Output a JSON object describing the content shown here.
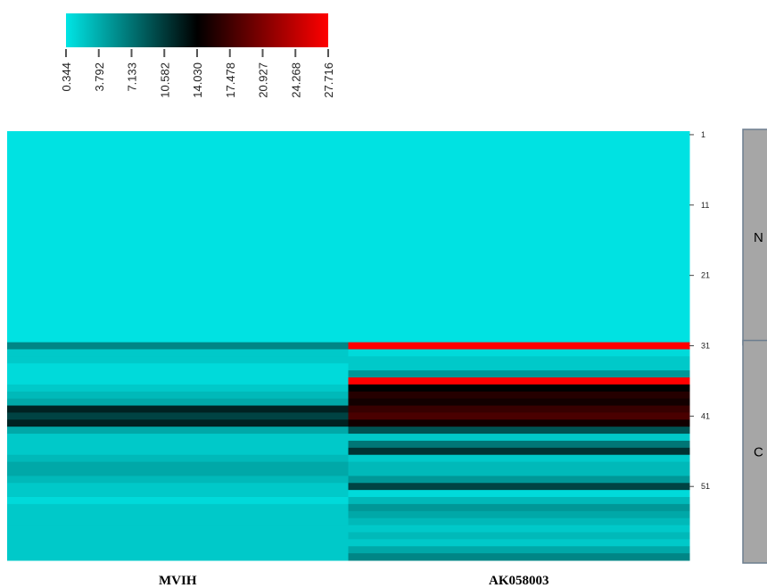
{
  "chart_data": {
    "type": "heatmap",
    "title": "",
    "columns": [
      "MVIH",
      "AK058003"
    ],
    "row_count": 61,
    "row_tick_labels": [
      "1",
      "11",
      "21",
      "31",
      "41",
      "51"
    ],
    "groups": [
      {
        "label": "N",
        "rows": [
          1,
          30
        ]
      },
      {
        "label": "C",
        "rows": [
          31,
          61
        ]
      }
    ],
    "colorbar": {
      "min": 0.344,
      "max": 27.716,
      "tick_labels": [
        "0.344",
        "3.792",
        "7.133",
        "10.582",
        "14.030",
        "17.478",
        "20.927",
        "24.268",
        "27.716"
      ],
      "colors": [
        "#00e5e5",
        "#000000",
        "#ff0000"
      ],
      "position": "top-left"
    },
    "values": {
      "MVIH": [
        0.5,
        0.5,
        0.5,
        0.5,
        0.5,
        0.5,
        0.5,
        0.5,
        0.5,
        0.5,
        0.5,
        0.5,
        0.5,
        0.5,
        0.5,
        0.5,
        0.5,
        0.5,
        0.5,
        0.5,
        0.5,
        0.5,
        0.5,
        0.5,
        0.5,
        0.5,
        0.5,
        0.5,
        0.5,
        0.5,
        6,
        2,
        2,
        1,
        1,
        1,
        2,
        3,
        4,
        12,
        10,
        12,
        4,
        2,
        2,
        2,
        3,
        4,
        4,
        3,
        2,
        2,
        1,
        2,
        2,
        2,
        2,
        2,
        2,
        2,
        2
      ],
      "AK058003": [
        0.5,
        0.5,
        0.5,
        0.5,
        0.5,
        0.5,
        0.5,
        0.5,
        0.5,
        0.5,
        0.5,
        0.5,
        0.5,
        0.5,
        0.5,
        0.5,
        0.5,
        0.5,
        0.5,
        0.5,
        0.5,
        0.5,
        0.5,
        0.5,
        0.5,
        0.5,
        0.5,
        0.5,
        0.5,
        0.5,
        27.7,
        1,
        2,
        2,
        5,
        27.7,
        14,
        16,
        15,
        17,
        18,
        15,
        9,
        2,
        7,
        11,
        2,
        3,
        3,
        5,
        10,
        1,
        3,
        5,
        4,
        3,
        2,
        3,
        2,
        4,
        6
      ]
    }
  }
}
